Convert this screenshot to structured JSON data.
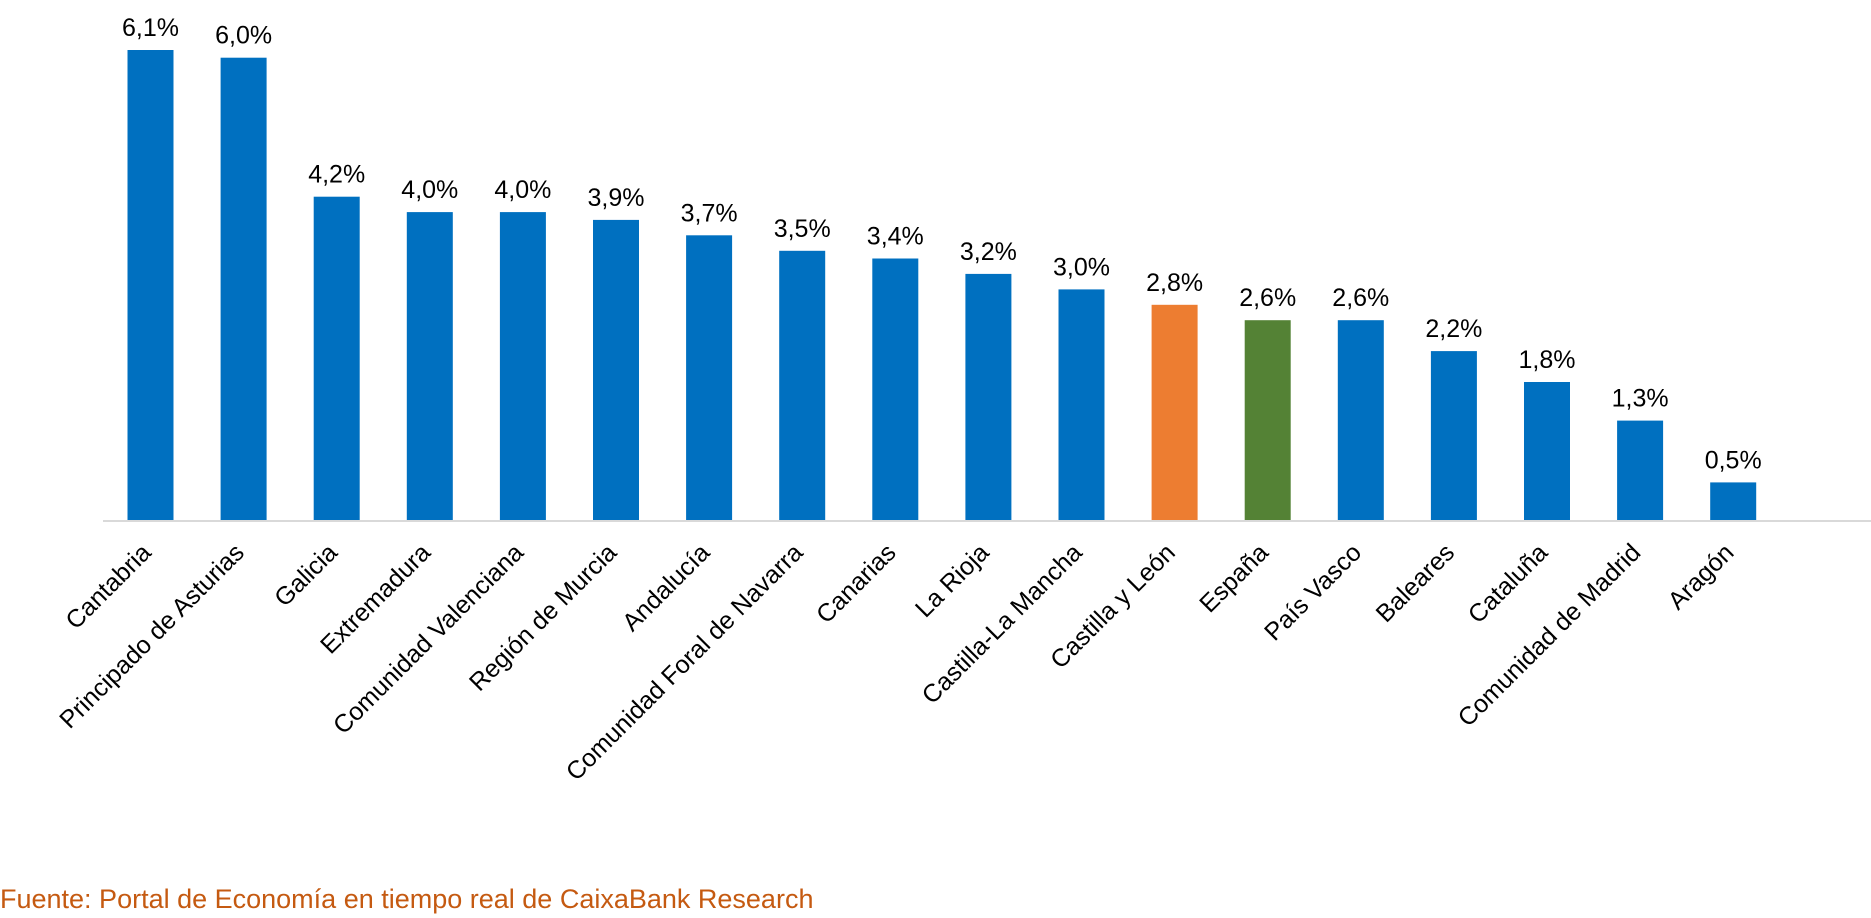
{
  "chart_data": {
    "type": "bar",
    "categories": [
      "Cantabria",
      "Principado de Asturias",
      "Galicia",
      "Extremadura",
      "Comunidad Valenciana",
      "Región de Murcia",
      "Andalucía",
      "Comunidad Foral de Navarra",
      "Canarias",
      "La Rioja",
      "Castilla-La Mancha",
      "Castilla y León",
      "España",
      "País Vasco",
      "Baleares",
      "Cataluña",
      "Comunidad de Madrid",
      "Aragón"
    ],
    "values": [
      6.1,
      6.0,
      4.2,
      4.0,
      4.0,
      3.9,
      3.7,
      3.5,
      3.4,
      3.2,
      3.0,
      2.8,
      2.6,
      2.6,
      2.2,
      1.8,
      1.3,
      0.5
    ],
    "data_labels": [
      "6,1%",
      "6,0%",
      "4,2%",
      "4,0%",
      "4,0%",
      "3,9%",
      "3,7%",
      "3,5%",
      "3,4%",
      "3,2%",
      "3,0%",
      "2,8%",
      "2,6%",
      "2,6%",
      "2,2%",
      "1,8%",
      "1,3%",
      "0,5%"
    ],
    "bar_colors": [
      "#0070c0",
      "#0070c0",
      "#0070c0",
      "#0070c0",
      "#0070c0",
      "#0070c0",
      "#0070c0",
      "#0070c0",
      "#0070c0",
      "#0070c0",
      "#0070c0",
      "#ed7d31",
      "#548235",
      "#0070c0",
      "#0070c0",
      "#0070c0",
      "#0070c0",
      "#0070c0"
    ],
    "title": "",
    "xlabel": "",
    "ylabel": "",
    "ylim": [
      0,
      6.1
    ],
    "grid": false,
    "legend": "none"
  },
  "source": "Fuente: Portal de Economía en tiempo real de CaixaBank Research",
  "colors": {
    "default_bar": "#0070c0",
    "highlight_bar": "#ed7d31",
    "national_bar": "#548235",
    "axis": "#d9d9d9",
    "source_text": "#c55a11"
  }
}
